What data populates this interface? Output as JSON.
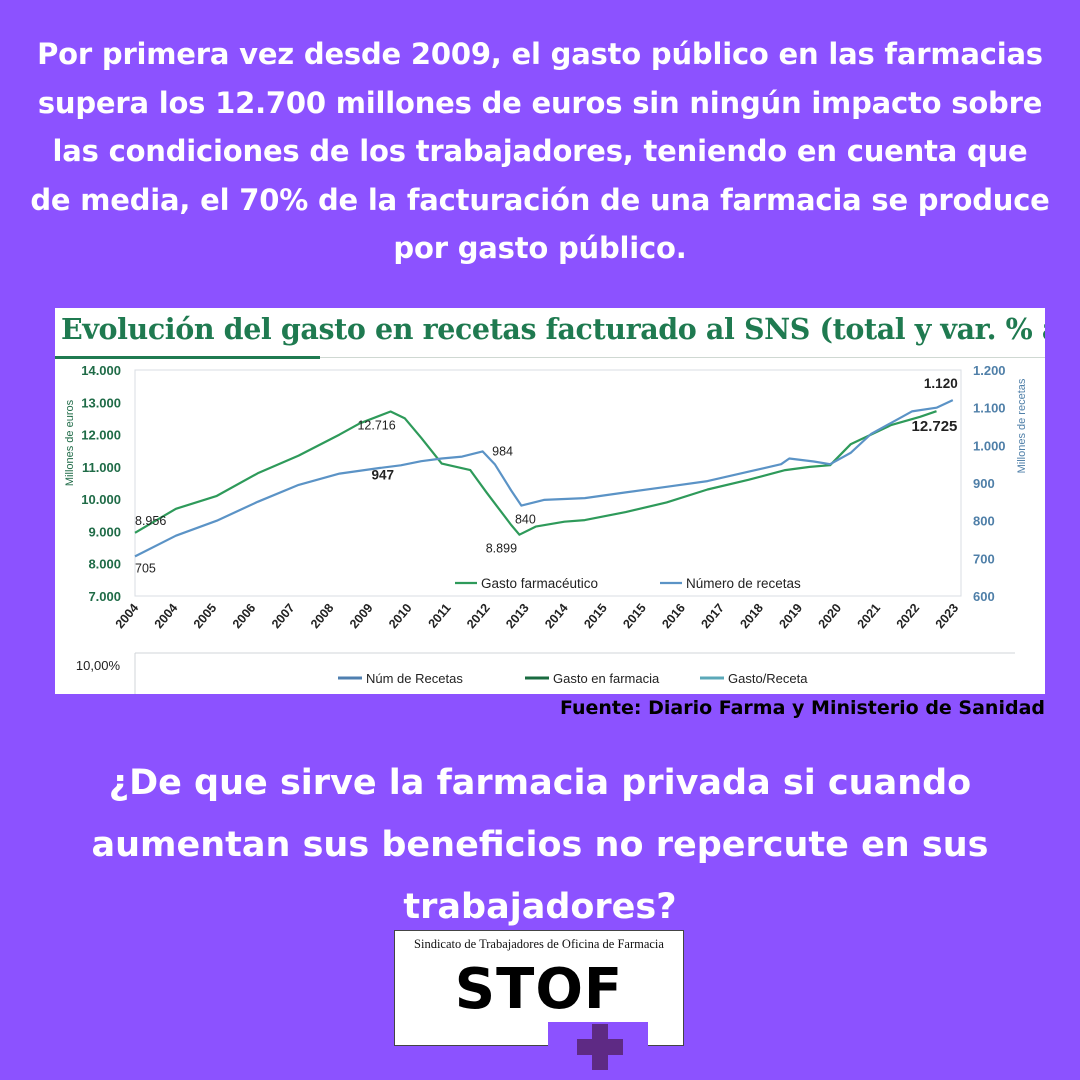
{
  "headline": "Por primera vez desde 2009, el gasto público en las farmacias supera los 12.700 millones de euros sin ningún impacto sobre las condiciones de los trabajadores, teniendo en cuenta que de media, el 70% de la facturación de una farmacia se produce por gasto público.",
  "source": "Fuente: Diario Farma y Ministerio de Sanidad",
  "question": "¿De que sirve la farmacia privada si cuando aumentan sus beneficios no repercute en sus trabajadores?",
  "logo": {
    "subtitle": "Sindicato de Trabajadores de Oficina de Farmacia",
    "name": "STOF",
    "cross_color": "#5e2a84"
  },
  "colors": {
    "background": "#8c52ff",
    "gasto_line": "#2e9a5a",
    "recetas_line": "#5b93c6",
    "title_green": "#1f7a50"
  },
  "chart_data": [
    {
      "type": "line",
      "title": "Evolución del gasto en recetas facturado al SNS (total y var. % anual)",
      "ylabel": "Millones de euros",
      "ylabel_right": "Millones de recetas",
      "ylim": [
        7000,
        14000
      ],
      "ylim_right": [
        600,
        1200
      ],
      "y_ticks": [
        "7.000",
        "8.000",
        "9.000",
        "10.000",
        "11.000",
        "12.000",
        "13.000",
        "14.000"
      ],
      "y_ticks_right": [
        "600",
        "700",
        "800",
        "900",
        "1.000",
        "1.100",
        "1.200"
      ],
      "x_tick_labels": [
        "2004",
        "2004",
        "2005",
        "2006",
        "2007",
        "2008",
        "2009",
        "2010",
        "2011",
        "2012",
        "2013",
        "2014",
        "2015",
        "2015",
        "2016",
        "2017",
        "2018",
        "2019",
        "2020",
        "2021",
        "2022",
        "2023"
      ],
      "legend": [
        "Gasto farmacéutico",
        "Número de recetas"
      ],
      "legend_position": "bottom",
      "series": [
        {
          "name": "Gasto farmacéutico",
          "axis": "left",
          "points": [
            [
              2004.0,
              8956
            ],
            [
              2005.0,
              9700
            ],
            [
              2006.0,
              10100
            ],
            [
              2007.0,
              10800
            ],
            [
              2008.0,
              11350
            ],
            [
              2009.0,
              12000
            ],
            [
              2009.5,
              12350
            ],
            [
              2010.25,
              12716
            ],
            [
              2010.6,
              12500
            ],
            [
              2011.0,
              11900
            ],
            [
              2011.5,
              11100
            ],
            [
              2012.2,
              10900
            ],
            [
              2012.6,
              10200
            ],
            [
              2013.2,
              9200
            ],
            [
              2013.4,
              8899
            ],
            [
              2013.8,
              9150
            ],
            [
              2014.5,
              9300
            ],
            [
              2015.0,
              9350
            ],
            [
              2016.0,
              9600
            ],
            [
              2017.0,
              9900
            ],
            [
              2018.0,
              10300
            ],
            [
              2019.0,
              10600
            ],
            [
              2019.9,
              10900
            ],
            [
              2020.5,
              11000
            ],
            [
              2021.0,
              11050
            ],
            [
              2021.5,
              11700
            ],
            [
              2022.0,
              12000
            ],
            [
              2022.5,
              12300
            ],
            [
              2023.2,
              12550
            ],
            [
              2023.6,
              12725
            ]
          ],
          "labels": [
            {
              "text": "8.956",
              "x": 2004.0,
              "y": 8956
            },
            {
              "text": "12.716",
              "x": 2010.25,
              "y": 12716
            },
            {
              "text": "8.899",
              "x": 2013.4,
              "y": 8899
            },
            {
              "text": "12.725",
              "x": 2023.6,
              "y": 12725
            }
          ]
        },
        {
          "name": "Número de recetas",
          "axis": "right",
          "points": [
            [
              2004.0,
              705
            ],
            [
              2005.0,
              760
            ],
            [
              2006.0,
              800
            ],
            [
              2007.0,
              850
            ],
            [
              2008.0,
              895
            ],
            [
              2009.0,
              925
            ],
            [
              2010.0,
              940
            ],
            [
              2010.5,
              947
            ],
            [
              2011.0,
              958
            ],
            [
              2011.5,
              965
            ],
            [
              2012.0,
              970
            ],
            [
              2012.5,
              984
            ],
            [
              2012.8,
              950
            ],
            [
              2013.2,
              880
            ],
            [
              2013.45,
              840
            ],
            [
              2014.0,
              855
            ],
            [
              2015.0,
              860
            ],
            [
              2016.0,
              875
            ],
            [
              2017.0,
              890
            ],
            [
              2018.0,
              905
            ],
            [
              2019.0,
              930
            ],
            [
              2019.8,
              950
            ],
            [
              2020.0,
              965
            ],
            [
              2020.6,
              957
            ],
            [
              2021.0,
              950
            ],
            [
              2021.5,
              980
            ],
            [
              2022.0,
              1030
            ],
            [
              2022.5,
              1060
            ],
            [
              2023.0,
              1090
            ],
            [
              2023.6,
              1100
            ],
            [
              2024.0,
              1120
            ]
          ],
          "labels": [
            {
              "text": "705",
              "x": 2004.0,
              "y": 705
            },
            {
              "text": "947",
              "x": 2010.5,
              "y": 947
            },
            {
              "text": "984",
              "x": 2012.5,
              "y": 984
            },
            {
              "text": "840",
              "x": 2013.45,
              "y": 840
            },
            {
              "text": "1.120",
              "x": 2024.0,
              "y": 1120
            }
          ]
        }
      ]
    },
    {
      "type": "line",
      "title": "",
      "y_ticks": [
        "10,00%"
      ],
      "legend": [
        "Núm de Recetas",
        "Gasto en farmacia",
        "Gasto/Receta"
      ],
      "legend_position": "bottom",
      "series": [
        {
          "name": "Núm de Recetas",
          "values": []
        },
        {
          "name": "Gasto en farmacia",
          "values": []
        },
        {
          "name": "Gasto/Receta",
          "values": []
        }
      ]
    }
  ]
}
